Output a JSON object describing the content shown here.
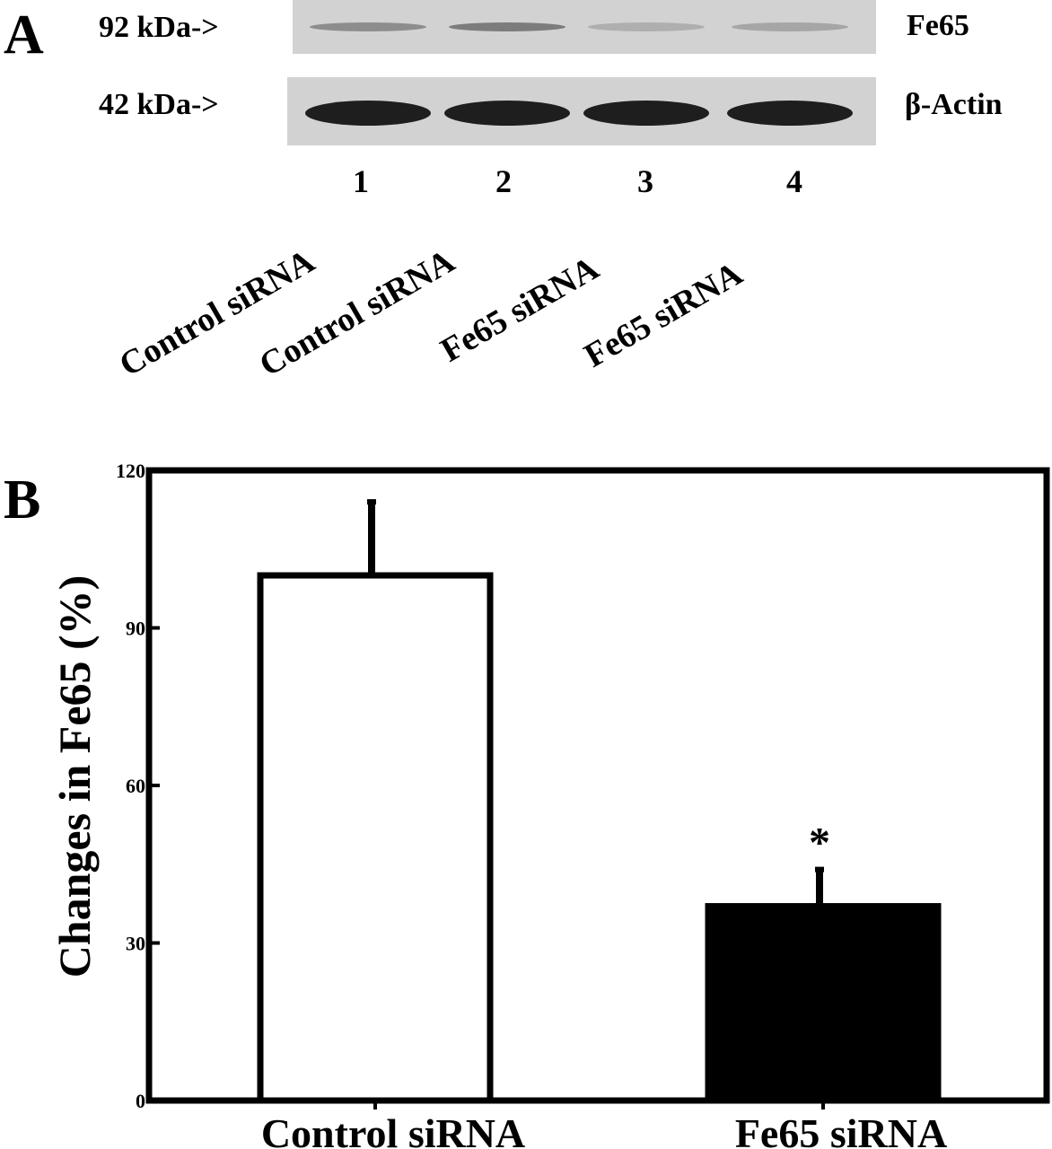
{
  "panelA": {
    "letter": "A",
    "markers": [
      {
        "label": "92 kDa->",
        "protein": "Fe65",
        "lane_intensity": [
          0.35,
          0.45,
          0.15,
          0.2
        ]
      },
      {
        "label": "42 kDa->",
        "protein": "β-Actin",
        "lane_intensity": [
          1,
          1,
          1,
          1
        ]
      }
    ],
    "lane_numbers": [
      "1",
      "2",
      "3",
      "4"
    ],
    "lane_labels": [
      "Control siRNA",
      "Control siRNA",
      "Fe65 siRNA",
      "Fe65 siRNA"
    ]
  },
  "panelB": {
    "letter": "B"
  },
  "chart_data": {
    "type": "bar",
    "categories": [
      "Control siRNA",
      "Fe65 siRNA"
    ],
    "values": [
      100,
      37
    ],
    "error": [
      14,
      7
    ],
    "significance": [
      "",
      "*"
    ],
    "bar_colors": [
      "#ffffff",
      "#000000"
    ],
    "ylabel": "Changes in Fe65  (%)",
    "xlabel": "",
    "ylim": [
      0,
      120
    ],
    "yticks": [
      "0",
      "30",
      "60",
      "90",
      "120"
    ],
    "grid": false
  }
}
